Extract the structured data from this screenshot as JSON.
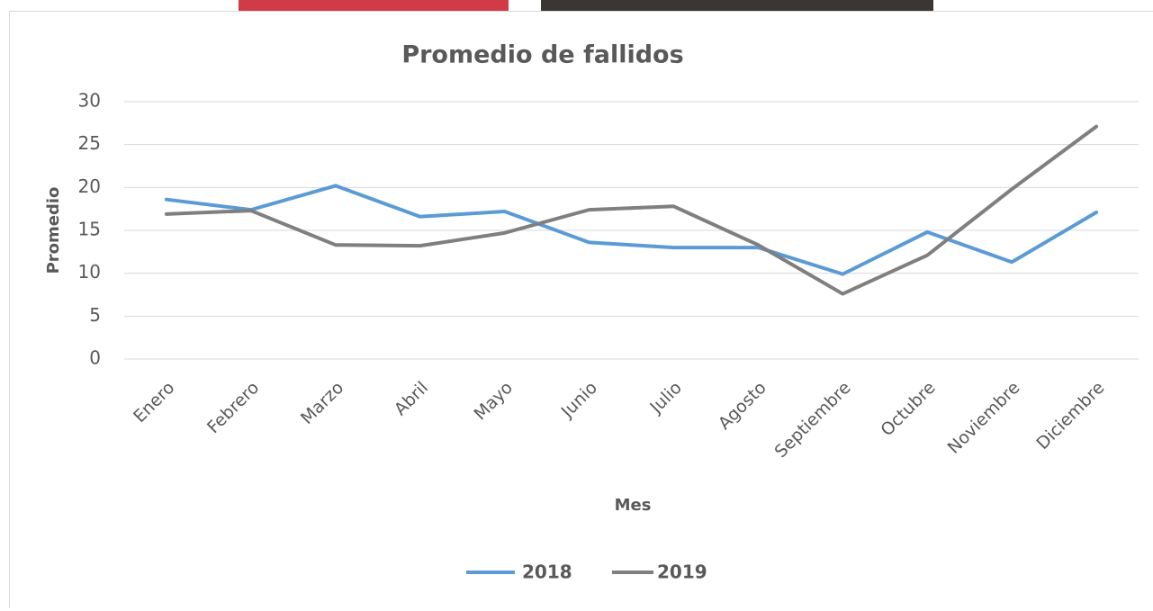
{
  "chart_data": {
    "type": "line",
    "title": "Promedio de fallidos",
    "x_label": "Mes",
    "y_label": "Promedio",
    "categories": [
      "Enero",
      "Febrero",
      "Marzo",
      "Abril",
      "Mayo",
      "Junio",
      "Julio",
      "Agosto",
      "Septiembre",
      "Octubre",
      "Noviembre",
      "Diciembre"
    ],
    "series": [
      {
        "name": "2018",
        "color": "#5b9bd5",
        "values": [
          18.6,
          17.4,
          20.2,
          16.6,
          17.2,
          13.6,
          13.0,
          13.0,
          9.9,
          14.8,
          11.3,
          17.1
        ]
      },
      {
        "name": "2019",
        "color": "#7f7f7f",
        "values": [
          16.9,
          17.3,
          13.3,
          13.2,
          14.7,
          17.4,
          17.8,
          13.3,
          7.6,
          12.1,
          19.8,
          27.1
        ]
      }
    ],
    "ylim": [
      0,
      30
    ],
    "yticks": [
      0,
      5,
      10,
      15,
      20,
      25,
      30
    ],
    "grid": true,
    "legend": "bottom"
  }
}
